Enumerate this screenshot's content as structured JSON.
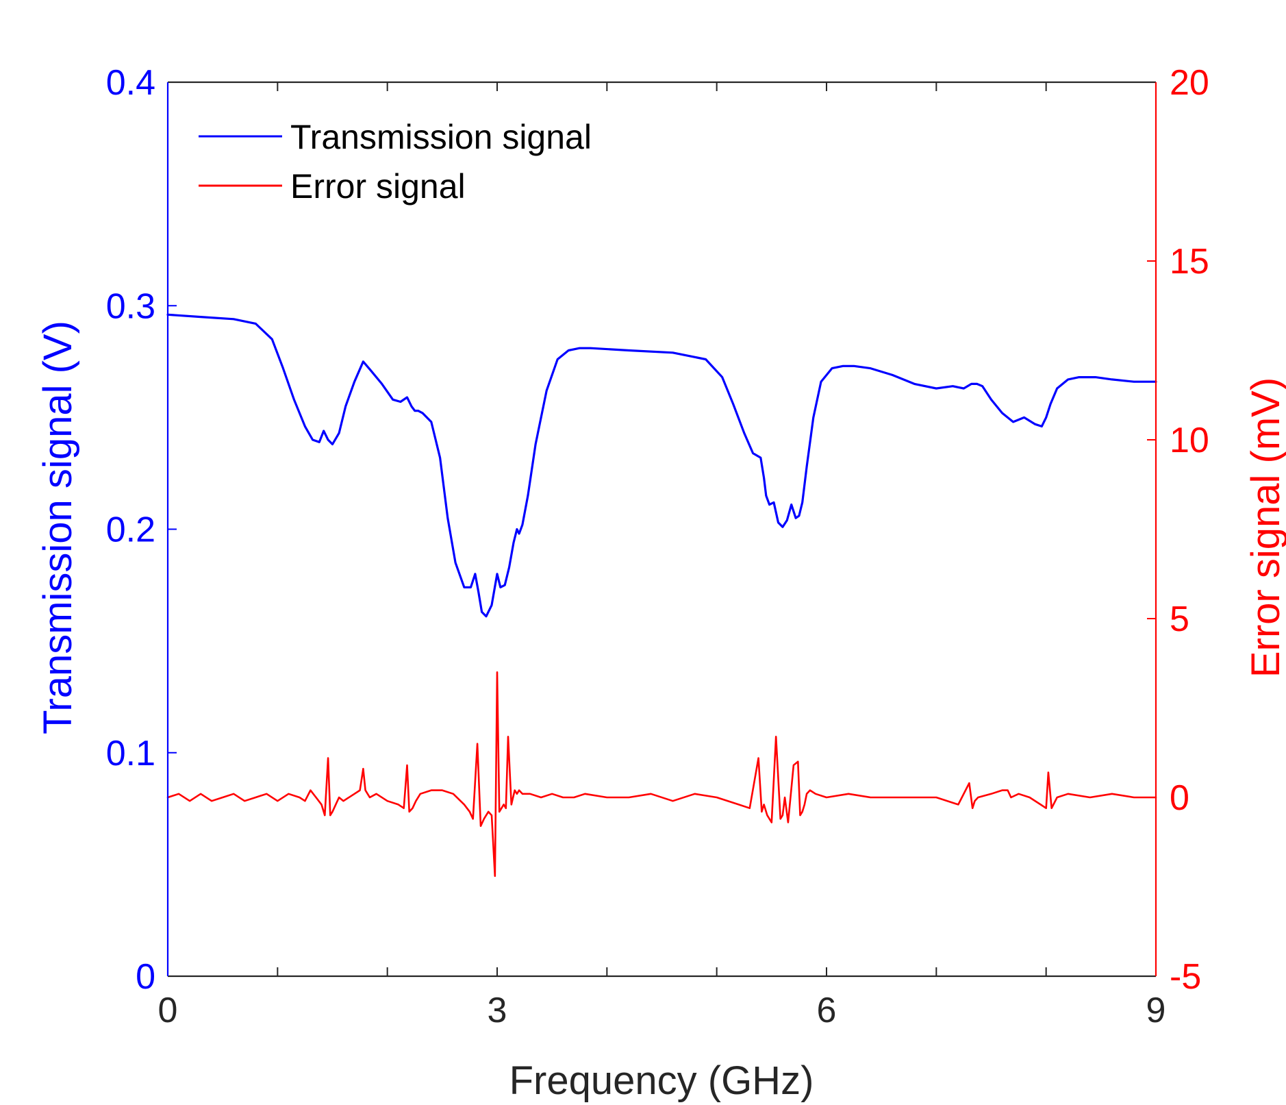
{
  "chart_data": {
    "type": "line",
    "xlabel": "Frequency (GHz)",
    "ylabel": "Transmission signal (V)",
    "y2label": "Error signal (mV)",
    "xlim": [
      0,
      9
    ],
    "ylim": [
      0,
      0.4
    ],
    "y2lim": [
      -5,
      20
    ],
    "xticks": [
      0,
      3,
      6,
      9
    ],
    "xminor": [
      1,
      2,
      4,
      5,
      7,
      8
    ],
    "yticks": [
      0,
      0.1,
      0.2,
      0.3,
      0.4
    ],
    "y2ticks": [
      -5,
      0,
      5,
      10,
      15,
      20
    ],
    "grid": false,
    "legend_position": "top-left",
    "colors": {
      "left_axis": "#0000ff",
      "right_axis": "#ff0000",
      "frame": "#262626",
      "xlabel": "#262626"
    },
    "series": [
      {
        "name": "Transmission signal",
        "axis": "left",
        "color": "#0000ff",
        "x": [
          0,
          0.3,
          0.6,
          0.8,
          0.95,
          1.05,
          1.15,
          1.25,
          1.32,
          1.38,
          1.42,
          1.46,
          1.5,
          1.56,
          1.62,
          1.7,
          1.78,
          1.85,
          1.95,
          2.05,
          2.12,
          2.18,
          2.22,
          2.25,
          2.28,
          2.32,
          2.4,
          2.48,
          2.55,
          2.62,
          2.7,
          2.76,
          2.8,
          2.83,
          2.86,
          2.9,
          2.95,
          3.0,
          3.03,
          3.07,
          3.11,
          3.15,
          3.18,
          3.2,
          3.23,
          3.28,
          3.35,
          3.45,
          3.55,
          3.65,
          3.75,
          3.85,
          4.2,
          4.6,
          4.9,
          5.05,
          5.15,
          5.25,
          5.33,
          5.4,
          5.43,
          5.45,
          5.48,
          5.52,
          5.56,
          5.6,
          5.64,
          5.68,
          5.72,
          5.75,
          5.78,
          5.82,
          5.88,
          5.95,
          6.05,
          6.15,
          6.25,
          6.4,
          6.6,
          6.8,
          7.0,
          7.15,
          7.25,
          7.32,
          7.37,
          7.42,
          7.5,
          7.6,
          7.7,
          7.8,
          7.9,
          7.96,
          8.0,
          8.04,
          8.1,
          8.2,
          8.3,
          8.45,
          8.6,
          8.8,
          9.0
        ],
        "values": [
          0.296,
          0.295,
          0.294,
          0.292,
          0.285,
          0.272,
          0.258,
          0.246,
          0.24,
          0.239,
          0.244,
          0.24,
          0.238,
          0.243,
          0.255,
          0.266,
          0.275,
          0.271,
          0.265,
          0.258,
          0.257,
          0.259,
          0.255,
          0.253,
          0.253,
          0.252,
          0.248,
          0.232,
          0.205,
          0.185,
          0.174,
          0.174,
          0.18,
          0.172,
          0.163,
          0.161,
          0.166,
          0.18,
          0.174,
          0.175,
          0.183,
          0.194,
          0.2,
          0.198,
          0.202,
          0.215,
          0.238,
          0.262,
          0.276,
          0.28,
          0.281,
          0.281,
          0.28,
          0.279,
          0.276,
          0.268,
          0.256,
          0.243,
          0.234,
          0.232,
          0.223,
          0.215,
          0.211,
          0.212,
          0.203,
          0.201,
          0.204,
          0.211,
          0.205,
          0.206,
          0.212,
          0.228,
          0.25,
          0.266,
          0.272,
          0.273,
          0.273,
          0.272,
          0.269,
          0.265,
          0.263,
          0.264,
          0.263,
          0.265,
          0.265,
          0.264,
          0.258,
          0.252,
          0.248,
          0.25,
          0.247,
          0.246,
          0.25,
          0.256,
          0.263,
          0.267,
          0.268,
          0.268,
          0.267,
          0.266,
          0.266
        ]
      },
      {
        "name": "Error signal",
        "axis": "right",
        "color": "#ff0000",
        "x": [
          0,
          0.1,
          0.2,
          0.3,
          0.4,
          0.5,
          0.6,
          0.7,
          0.8,
          0.9,
          1.0,
          1.1,
          1.2,
          1.25,
          1.3,
          1.35,
          1.4,
          1.43,
          1.46,
          1.48,
          1.5,
          1.53,
          1.56,
          1.6,
          1.7,
          1.75,
          1.78,
          1.8,
          1.82,
          1.84,
          1.9,
          2.0,
          2.1,
          2.15,
          2.18,
          2.2,
          2.23,
          2.26,
          2.3,
          2.4,
          2.5,
          2.6,
          2.7,
          2.75,
          2.78,
          2.82,
          2.85,
          2.88,
          2.9,
          2.92,
          2.95,
          2.98,
          3.0,
          3.02,
          3.04,
          3.06,
          3.08,
          3.1,
          3.13,
          3.16,
          3.18,
          3.2,
          3.23,
          3.3,
          3.4,
          3.5,
          3.6,
          3.7,
          3.8,
          4.0,
          4.2,
          4.4,
          4.6,
          4.8,
          5.0,
          5.2,
          5.3,
          5.38,
          5.41,
          5.43,
          5.46,
          5.5,
          5.54,
          5.58,
          5.6,
          5.62,
          5.65,
          5.7,
          5.74,
          5.76,
          5.78,
          5.8,
          5.82,
          5.85,
          5.9,
          6.0,
          6.2,
          6.4,
          6.6,
          6.8,
          7.0,
          7.2,
          7.3,
          7.33,
          7.35,
          7.38,
          7.5,
          7.6,
          7.65,
          7.68,
          7.75,
          7.85,
          7.95,
          8.0,
          8.02,
          8.05,
          8.1,
          8.2,
          8.4,
          8.6,
          8.8,
          9.0
        ],
        "values": [
          0.0,
          0.1,
          -0.1,
          0.1,
          -0.1,
          0.0,
          0.1,
          -0.1,
          0.0,
          0.1,
          -0.1,
          0.1,
          0.0,
          -0.1,
          0.2,
          0.0,
          -0.2,
          -0.5,
          1.1,
          -0.5,
          -0.4,
          -0.2,
          0.0,
          -0.1,
          0.1,
          0.2,
          0.8,
          0.2,
          0.1,
          0.0,
          0.1,
          -0.1,
          -0.2,
          -0.3,
          0.9,
          -0.4,
          -0.3,
          -0.1,
          0.1,
          0.2,
          0.2,
          0.1,
          -0.2,
          -0.4,
          -0.6,
          1.5,
          -0.8,
          -0.6,
          -0.5,
          -0.4,
          -0.5,
          -2.2,
          3.5,
          -0.4,
          -0.3,
          -0.2,
          -0.3,
          1.7,
          -0.2,
          0.2,
          0.1,
          0.2,
          0.1,
          0.1,
          0.0,
          0.1,
          0.0,
          0.0,
          0.1,
          0.0,
          0.0,
          0.1,
          -0.1,
          0.1,
          0.0,
          -0.2,
          -0.3,
          1.1,
          -0.4,
          -0.2,
          -0.5,
          -0.7,
          1.7,
          -0.6,
          -0.5,
          0.0,
          -0.7,
          0.9,
          1.0,
          -0.5,
          -0.4,
          -0.2,
          0.1,
          0.2,
          0.1,
          0.0,
          0.1,
          0.0,
          0.0,
          0.0,
          0.0,
          -0.2,
          0.4,
          -0.3,
          -0.1,
          0.0,
          0.1,
          0.2,
          0.2,
          0.0,
          0.1,
          0.0,
          -0.2,
          -0.3,
          0.7,
          -0.3,
          0.0,
          0.1,
          0.0,
          0.1,
          0.0,
          0.0
        ]
      }
    ]
  }
}
